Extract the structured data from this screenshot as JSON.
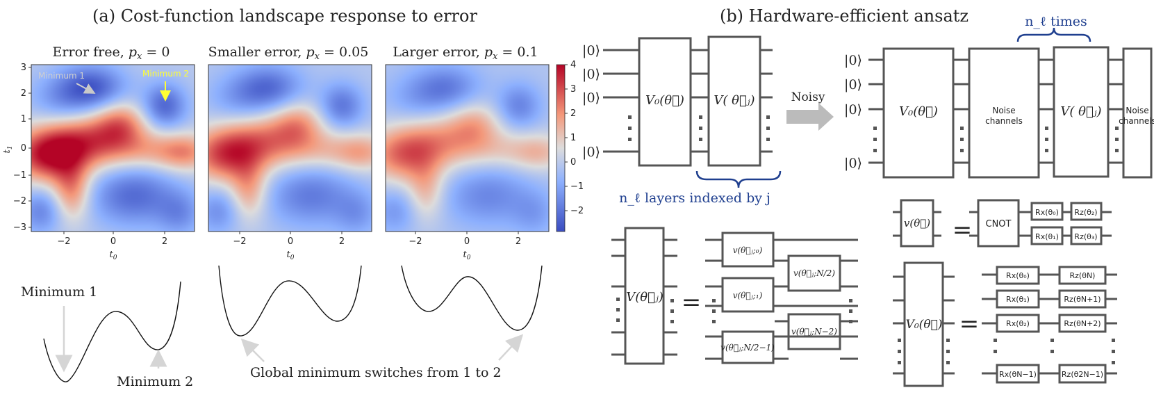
{
  "panel_a": {
    "title": "(a) Cost-function landscape response to error",
    "heatmaps": [
      {
        "title": "Error free, p_x = 0",
        "noise": 0.0
      },
      {
        "title": "Smaller error, p_x = 0.05",
        "noise": 0.05
      },
      {
        "title": "Larger error, p_x = 0.1",
        "noise": 0.1
      }
    ],
    "xlabel": "t0",
    "ylabel": "t1",
    "xticks": [
      "−2",
      "0",
      "2"
    ],
    "yticks": [
      "3",
      "2",
      "1",
      "0",
      "−1",
      "−2",
      "−3"
    ],
    "colorbar_ticks": [
      "4",
      "3",
      "2",
      "1",
      "0",
      "−1",
      "−2"
    ],
    "annotations": {
      "min1": "Minimum 1",
      "min2": "Minimum 2"
    },
    "curve_labels": {
      "min1": "Minimum 1",
      "min2": "Minimum 2",
      "switch": "Global minimum switches from 1 to 2"
    },
    "colors": {
      "min1_annotation": "#c9c9c9",
      "min2_annotation": "#ffff33"
    }
  },
  "panel_b": {
    "title": "(b) Hardware-efficient ansatz",
    "ket": "|0⟩",
    "v0": "V₀(θ⃗)",
    "vj": "V( θ⃗ⱼ)",
    "layers_label": "n_ℓ layers indexed by j",
    "noisy_label": "Noisy",
    "times_label": "n_ℓ times",
    "noise_box": [
      "Noise",
      "channels"
    ],
    "vj_big": "V(θ⃗ⱼ)",
    "v_small": "v(θ⃗)",
    "sub_blocks": [
      "v(θ⃗ⱼ;₀)",
      "v(θ⃗ⱼ;₁)",
      "v(θ⃗ⱼ;N/2−1)",
      "v(θ⃗ⱼ;N/2)",
      "v(θ⃗ⱼ;N−2)"
    ],
    "cnot": "CNOT",
    "v_gates": [
      "Rx(θ₀)",
      "Rz(θ₂)",
      "Rx(θ₁)",
      "Rz(θ₃)"
    ],
    "v0_gates_rx": [
      "Rx(θ₀)",
      "Rx(θ₁)",
      "Rx(θ₂)",
      "Rx(θN−1)"
    ],
    "v0_gates_rz": [
      "Rz(θN)",
      "Rz(θN+1)",
      "Rz(θN+2)",
      "Rz(θ2N−1)"
    ],
    "equals": "=",
    "accent": "#1f3f8f",
    "gate_color": "#555555"
  }
}
